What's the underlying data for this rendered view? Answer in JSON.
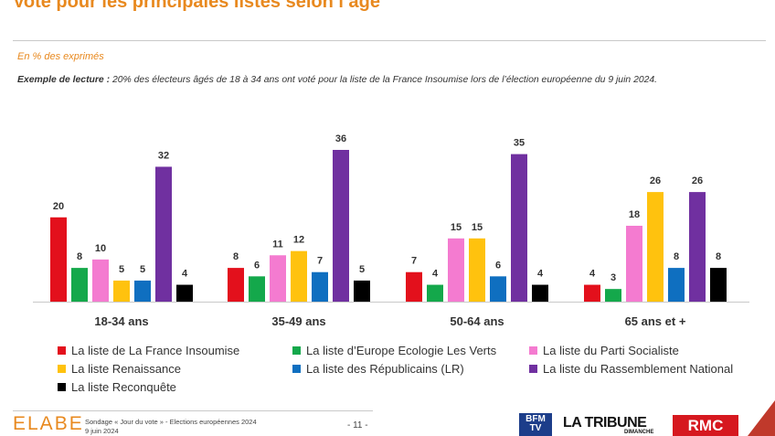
{
  "title": "Vote pour les principales listes selon l’âge",
  "subtitle": "En % des exprimés",
  "reading_example": {
    "label": "Exemple de lecture :",
    "text": " 20% des électeurs âgés de 18 à 34 ans ont voté pour la liste de la France Insoumise lors de l’élection européenne du 9 juin 2024."
  },
  "chart_data": {
    "type": "bar",
    "title": "Vote pour les principales listes selon l’âge",
    "ylabel": "En % des exprimés",
    "xlabel": "",
    "ylim": [
      0,
      36
    ],
    "categories": [
      "18-34 ans",
      "35-49 ans",
      "50-64 ans",
      "65 ans et +"
    ],
    "series": [
      {
        "name": "La liste de La France Insoumise",
        "color": "#e3101c",
        "values": [
          20,
          8,
          7,
          4
        ]
      },
      {
        "name": "La liste d’Europe Ecologie Les Verts",
        "color": "#14a84b",
        "values": [
          8,
          6,
          4,
          3
        ]
      },
      {
        "name": "La liste du Parti Socialiste",
        "color": "#f47bd0",
        "values": [
          10,
          11,
          15,
          18
        ]
      },
      {
        "name": "La liste Renaissance",
        "color": "#ffc20e",
        "values": [
          5,
          12,
          15,
          26
        ]
      },
      {
        "name": "La liste des Républicains (LR)",
        "color": "#0f6fc0",
        "values": [
          5,
          7,
          6,
          8
        ]
      },
      {
        "name": "La liste du Rassemblement National",
        "color": "#7030a0",
        "values": [
          32,
          36,
          35,
          26
        ]
      },
      {
        "name": "La liste Reconquête",
        "color": "#000000",
        "values": [
          4,
          5,
          4,
          8
        ]
      }
    ],
    "legend": "bottom"
  },
  "footer": {
    "logo": "ELABE",
    "source_line1": "Sondage « Jour du vote » - Elections européennes 2024",
    "source_line2": "9 juin 2024",
    "page": "- 11 -",
    "partners": {
      "bfm_line1": "BFM",
      "bfm_line2": "TV",
      "tribune": "LA TRIBUNE",
      "dimanche": "DIMANCHE",
      "rmc": "RMC"
    }
  }
}
